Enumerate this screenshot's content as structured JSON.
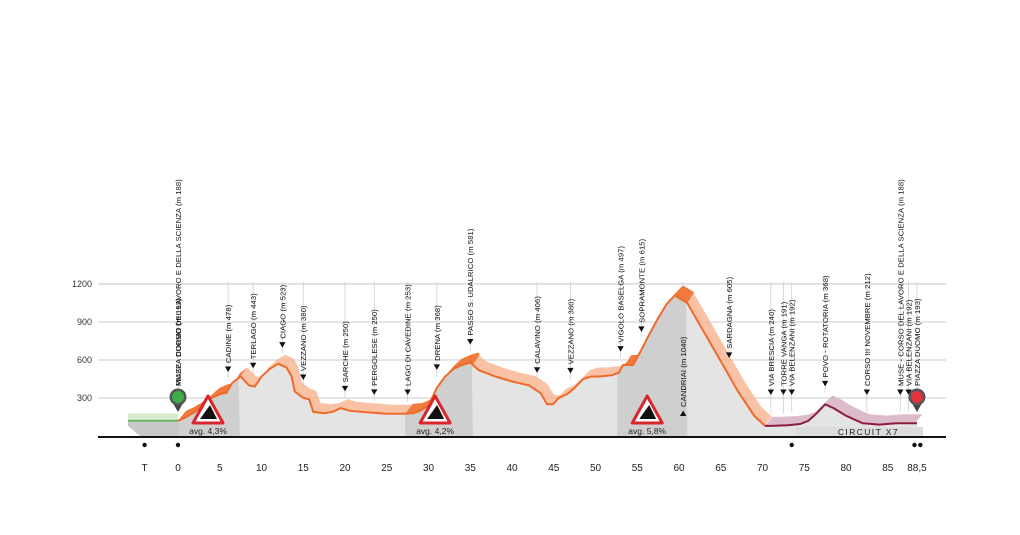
{
  "chart_data": {
    "type": "area",
    "title": "",
    "xlabel": "",
    "ylabel": "",
    "ylim": [
      0,
      1200
    ],
    "yticks": [
      300,
      600,
      900,
      1200
    ],
    "xticks": [
      "T",
      "0",
      "5",
      "10",
      "15",
      "20",
      "25",
      "30",
      "35",
      "40",
      "45",
      "50",
      "55",
      "60",
      "65",
      "70",
      "75",
      "80",
      "85",
      "88,5"
    ],
    "grid": true,
    "profile": [
      [
        -4,
        110
      ],
      [
        0,
        120
      ],
      [
        1,
        150
      ],
      [
        2,
        190
      ],
      [
        3,
        240
      ],
      [
        4,
        300
      ],
      [
        5,
        330
      ],
      [
        5.8,
        340
      ],
      [
        6.5,
        420
      ],
      [
        7.5,
        470
      ],
      [
        8.5,
        400
      ],
      [
        9.2,
        390
      ],
      [
        10,
        470
      ],
      [
        11,
        530
      ],
      [
        12,
        570
      ],
      [
        13,
        540
      ],
      [
        13.6,
        470
      ],
      [
        14,
        350
      ],
      [
        15,
        300
      ],
      [
        15.7,
        290
      ],
      [
        16.2,
        190
      ],
      [
        17.5,
        180
      ],
      [
        18.5,
        190
      ],
      [
        19.5,
        220
      ],
      [
        20.5,
        200
      ],
      [
        22,
        190
      ],
      [
        25,
        175
      ],
      [
        27,
        175
      ],
      [
        28.2,
        180
      ],
      [
        29,
        200
      ],
      [
        30,
        240
      ],
      [
        31,
        380
      ],
      [
        32,
        470
      ],
      [
        33,
        530
      ],
      [
        34,
        560
      ],
      [
        35,
        580
      ],
      [
        36,
        520
      ],
      [
        38,
        470
      ],
      [
        40,
        430
      ],
      [
        42,
        400
      ],
      [
        43.4,
        340
      ],
      [
        44.2,
        250
      ],
      [
        44.9,
        250
      ],
      [
        45.6,
        300
      ],
      [
        46.6,
        330
      ],
      [
        47.5,
        380
      ],
      [
        48.5,
        450
      ],
      [
        49.5,
        470
      ],
      [
        50.5,
        470
      ],
      [
        52,
        480
      ],
      [
        52.8,
        500
      ],
      [
        53.3,
        560
      ],
      [
        54.5,
        560
      ],
      [
        55.5,
        680
      ],
      [
        56.5,
        810
      ],
      [
        57.5,
        930
      ],
      [
        58.5,
        1040
      ],
      [
        59.5,
        1110
      ],
      [
        61,
        1050
      ],
      [
        63,
        820
      ],
      [
        65,
        590
      ],
      [
        67,
        360
      ],
      [
        69,
        160
      ],
      [
        70.3,
        80
      ],
      [
        71,
        80
      ],
      [
        73,
        85
      ],
      [
        74.5,
        95
      ],
      [
        75.5,
        120
      ],
      [
        76.5,
        180
      ],
      [
        77.5,
        250
      ],
      [
        78.5,
        220
      ],
      [
        80,
        160
      ],
      [
        82,
        100
      ],
      [
        84,
        90
      ],
      [
        86,
        100
      ],
      [
        88.5,
        100
      ]
    ],
    "climbs": [
      {
        "name": "",
        "start": 0,
        "end": 7.4,
        "avg": "avg. 4,3%"
      },
      {
        "name": "PASSO S. UDALRICO",
        "start": 27.2,
        "end": 35.3,
        "avg": "avg. 4,2%"
      },
      {
        "name": "CANDRIAI (m 1040)",
        "start": 52.6,
        "end": 61,
        "avg": "avg. 5,8%"
      }
    ],
    "annotations": [
      {
        "label": "PIAZZA DUOMO (m 193)",
        "x": 0
      },
      {
        "label": "MUSE - CORSO DEL LAVORO E DELLA SCIENZA (m 188)",
        "x": 0
      },
      {
        "label": "CADINE (m 478)",
        "x": 6
      },
      {
        "label": "TERLAGO (m 443)",
        "x": 9
      },
      {
        "label": "CIAGO (m 523)",
        "x": 12.5
      },
      {
        "label": "VEZZANO (m 380)",
        "x": 15
      },
      {
        "label": "SARCHE (m 250)",
        "x": 20
      },
      {
        "label": "PERGOLESE (m 250)",
        "x": 23.5
      },
      {
        "label": "LAGO DI CAVEDINE (m 253)",
        "x": 27.5
      },
      {
        "label": "DRENA (m 368)",
        "x": 31
      },
      {
        "label": "PASSO S. UDALRICO (m 581)",
        "x": 35
      },
      {
        "label": "CALAVINO (m 406)",
        "x": 43
      },
      {
        "label": "VEZZANO (m 380)",
        "x": 47
      },
      {
        "label": "VIGOLO BASELGA (m 497)",
        "x": 53
      },
      {
        "label": "SOPRAMONTE (m 615)",
        "x": 55.5
      },
      {
        "label": "CANDRIAI (m 1040)",
        "x": 60.5
      },
      {
        "label": "SARDAGNA (m 605)",
        "x": 66
      },
      {
        "label": "VIA BRESCIA (m 240)",
        "x": 71
      },
      {
        "label": "TORRE VANGA (m 191)",
        "x": 72.5
      },
      {
        "label": "VIA BELENZANI (m 192)",
        "x": 73.5
      },
      {
        "label": "POVO - ROTATORIA (m 368)",
        "x": 77.5
      },
      {
        "label": "CORSO III NOVEMBRE (m 212)",
        "x": 82.5
      },
      {
        "label": "MUSE - CORSO DEL LAVORO E DELLA SCIENZA (m 188)",
        "x": 86.5
      },
      {
        "label": "VIA BELENZANI (m 192)",
        "x": 87.5
      },
      {
        "label": "PIAZZA DUOMO (m 193)",
        "x": 88.5
      }
    ],
    "circuit_label": "CIRCUIT X7",
    "colors": {
      "profile_line": "#ee6a2c",
      "climb_fill": "#f07a3c",
      "climb_fill_light": "#f7b38f",
      "circuit_line": "#8a1f3c",
      "circuit_fill": "#d8b4c4",
      "neutral_line": "#5cb85c",
      "ground": "#e4e4e4",
      "start_marker": "#3fae49",
      "finish_marker": "#e0333c",
      "warning": "#d9262c"
    }
  }
}
